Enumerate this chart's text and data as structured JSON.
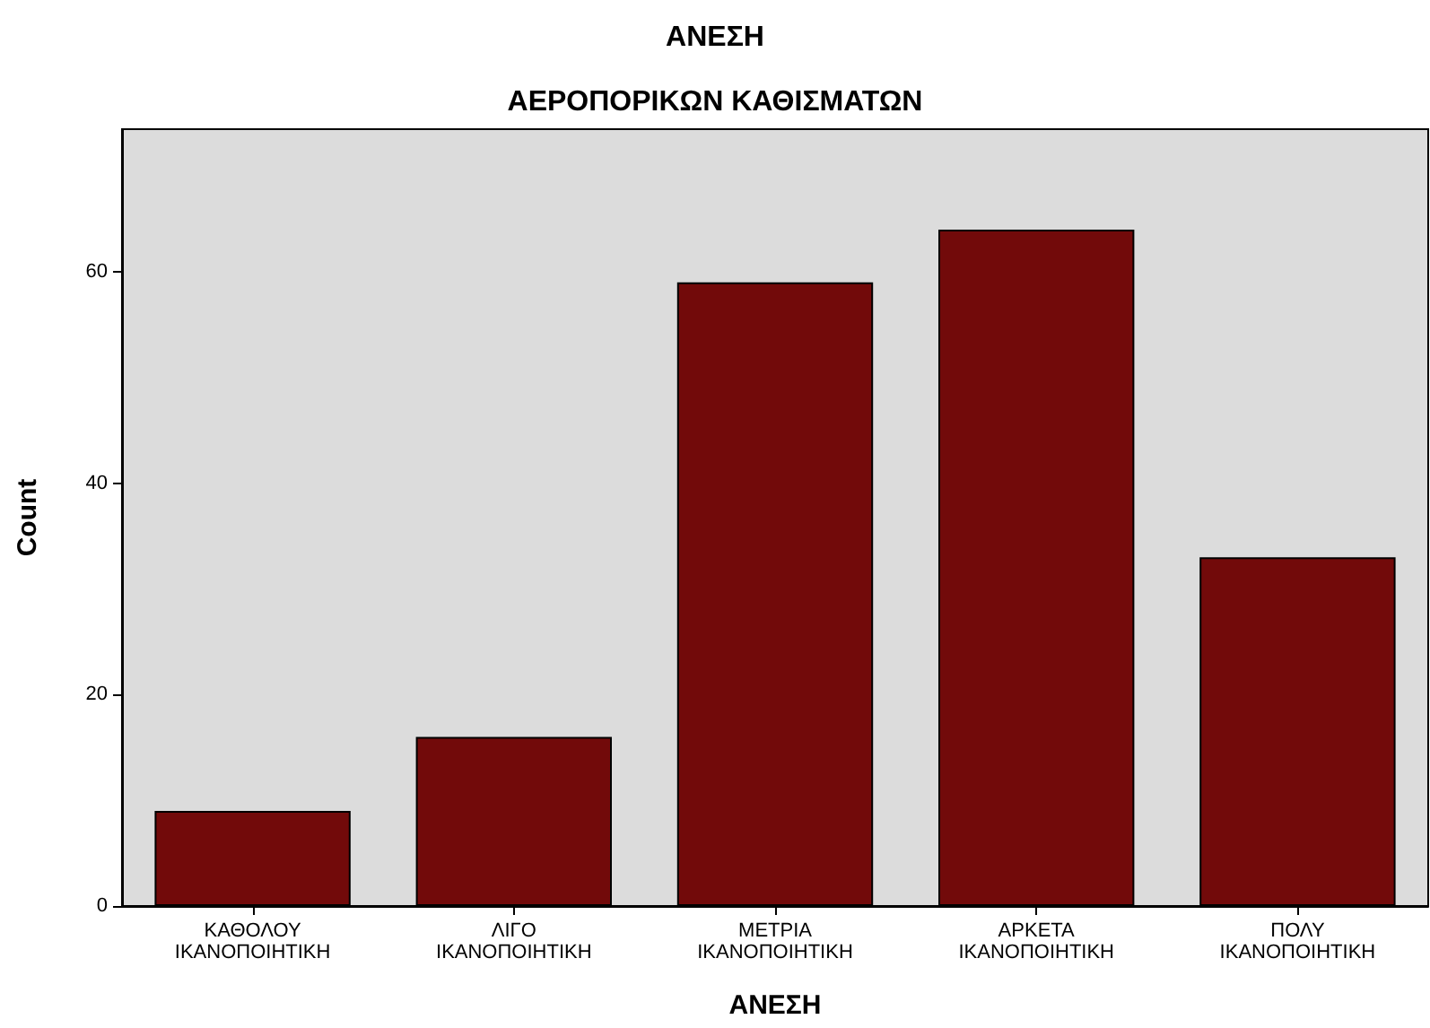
{
  "chart_data": {
    "type": "bar",
    "title": "ΑΝΕΣΗ",
    "subtitle": "ΑΕΡΟΠΟΡΙΚΩΝ ΚΑΘΙΣΜΑΤΩΝ",
    "xlabel": "ΑΝΕΣΗ",
    "ylabel": "Count",
    "categories": [
      "ΚΑΘΟΛΟΥ\nΙΚΑΝΟΠΟΙΗΤΙΚΗ",
      "ΛΙΓΟ\nΙΚΑΝΟΠΟΙΗΤΙΚΗ",
      "ΜΕΤΡΙΑ\nΙΚΑΝΟΠΟΙΗΤΙΚΗ",
      "ΑΡΚΕΤΑ\nΙΚΑΝΟΠΟΙΗΤΙΚΗ",
      "ΠΟΛΥ\nΙΚΑΝΟΠΟΙΗΤΙΚΗ"
    ],
    "values": [
      9,
      16,
      59,
      64,
      33
    ],
    "color": "#720a0a",
    "ylim": [
      0,
      73.5
    ],
    "yticks": [
      0,
      20,
      40,
      60
    ],
    "grid": false
  }
}
